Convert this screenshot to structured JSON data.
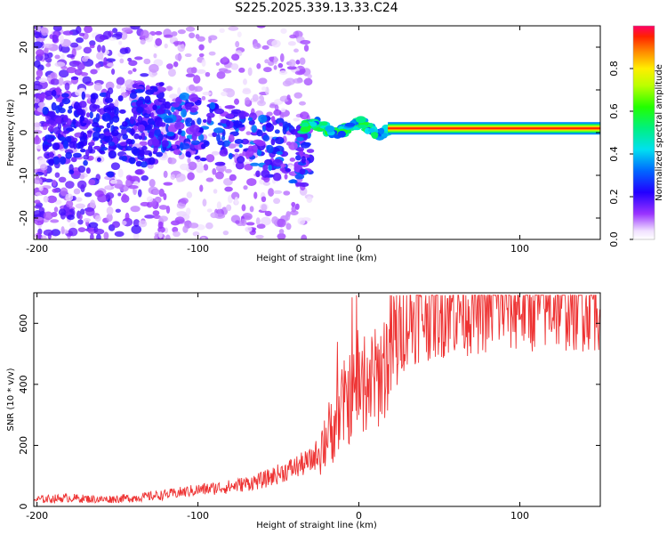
{
  "chart_data": [
    {
      "type": "heatmap",
      "title": "S225.2025.339.13.33.C24",
      "xlabel": "Height of straight line (km)",
      "ylabel": "Frequency (Hz)",
      "xlim": [
        -202,
        150
      ],
      "ylim": [
        -25,
        25
      ],
      "x_ticks": [
        -200,
        -100,
        0,
        100
      ],
      "y_ticks": [
        -20,
        -10,
        0,
        10,
        20
      ],
      "colorbar": {
        "label": "Normalized spectral amplitude",
        "range": [
          0.0,
          1.0
        ],
        "ticks": [
          0.0,
          0.2,
          0.4,
          0.6,
          0.8
        ]
      },
      "features": [
        {
          "name": "scatter-noise",
          "x_range": [
            -200,
            -30
          ],
          "freq_range": [
            -25,
            25
          ],
          "amplitude": 0.15
        },
        {
          "name": "descending-tail",
          "x_range": [
            -140,
            -30
          ],
          "freq_start": 5,
          "freq_end": -6,
          "amplitude": 0.35
        },
        {
          "name": "wavering-segment",
          "x_range": [
            -35,
            18
          ],
          "freq_center": 1,
          "amplitude": 0.55
        },
        {
          "name": "steady-line",
          "x_range": [
            18,
            150
          ],
          "freq_center": 1,
          "amplitude": 0.95
        }
      ]
    },
    {
      "type": "line",
      "xlabel": "Height of straight line (km)",
      "ylabel": "SNR (10 * v/v)",
      "xlim": [
        -202,
        150
      ],
      "ylim": [
        0,
        700
      ],
      "x_ticks": [
        -200,
        -100,
        0,
        100
      ],
      "y_ticks": [
        0,
        200,
        400,
        600
      ],
      "color": "#ee3333",
      "series": [
        {
          "name": "SNR",
          "x": [
            -200,
            -180,
            -160,
            -140,
            -120,
            -100,
            -80,
            -60,
            -50,
            -40,
            -30,
            -20,
            -15,
            -10,
            -5,
            0,
            5,
            10,
            15,
            20,
            25,
            30,
            40,
            50,
            60,
            80,
            100,
            120,
            150
          ],
          "values": [
            20,
            25,
            20,
            25,
            35,
            50,
            60,
            80,
            100,
            120,
            140,
            200,
            250,
            300,
            330,
            360,
            370,
            380,
            420,
            470,
            530,
            580,
            600,
            610,
            620,
            630,
            635,
            640,
            640
          ]
        }
      ]
    }
  ]
}
